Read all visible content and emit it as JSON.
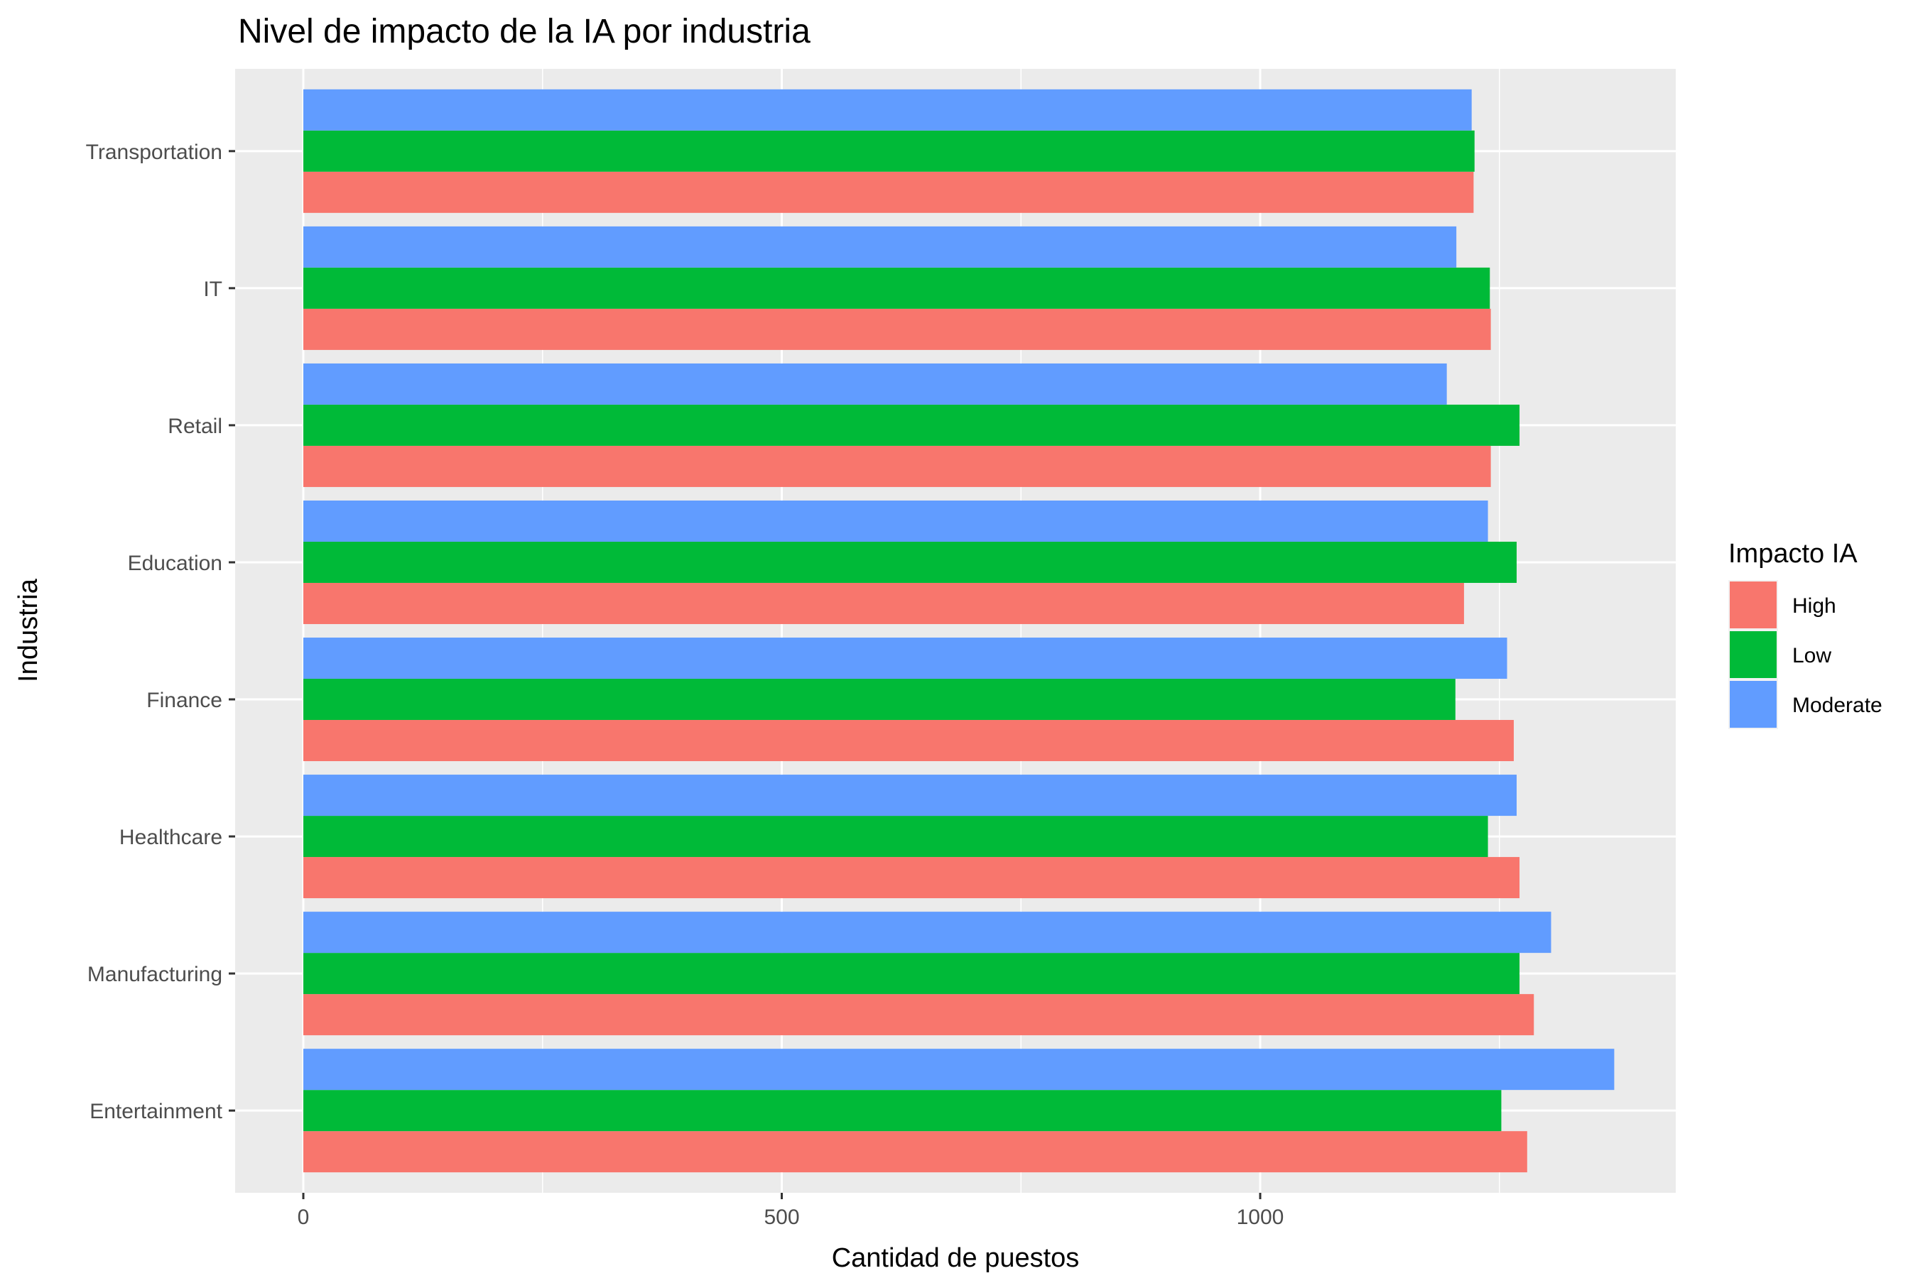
{
  "chart_data": {
    "type": "bar",
    "orientation": "horizontal",
    "position": "dodge",
    "title": "Nivel de impacto de la IA por industria",
    "xlabel": "Cantidad de puestos",
    "ylabel": "Industria",
    "categories": [
      "Entertainment",
      "Manufacturing",
      "Healthcare",
      "Finance",
      "Education",
      "Retail",
      "IT",
      "Transportation"
    ],
    "x_ticks": [
      0,
      500,
      1000
    ],
    "xlim": [
      -70,
      1440
    ],
    "grid": true,
    "legend": {
      "title": "Impacto IA",
      "placement": "right"
    },
    "series": [
      {
        "name": "High",
        "color": "#F8766D",
        "values": [
          1279,
          1286,
          1271,
          1265,
          1213,
          1241,
          1241,
          1223
        ]
      },
      {
        "name": "Low",
        "color": "#00BA38",
        "values": [
          1252,
          1271,
          1238,
          1204,
          1268,
          1271,
          1240,
          1224
        ]
      },
      {
        "name": "Moderate",
        "color": "#619CFF",
        "values": [
          1370,
          1304,
          1268,
          1258,
          1238,
          1195,
          1205,
          1221
        ]
      }
    ]
  }
}
